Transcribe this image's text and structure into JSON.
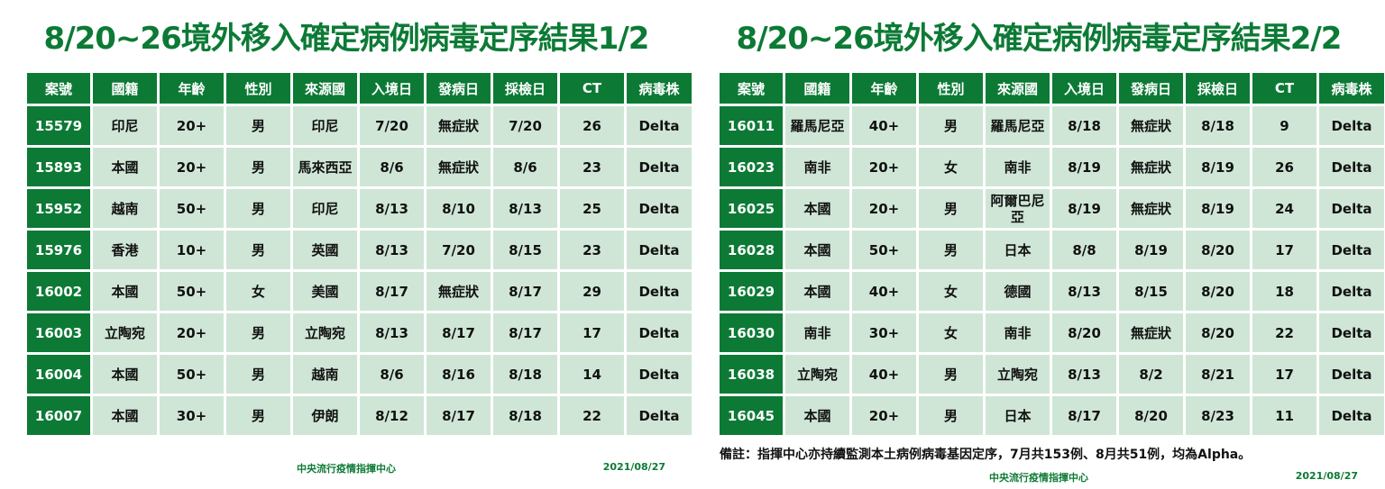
{
  "colors": {
    "brand_green": "#0c7a35",
    "cell_bg": "#cfe6d6"
  },
  "headers": [
    "案號",
    "國籍",
    "年齡",
    "性別",
    "來源國",
    "入境日",
    "發病日",
    "採檢日",
    "CT",
    "病毒株"
  ],
  "left": {
    "title": "8/20~26境外移入確定病例病毒定序結果1/2",
    "rows": [
      [
        "15579",
        "印尼",
        "20+",
        "男",
        "印尼",
        "7/20",
        "無症狀",
        "7/20",
        "26",
        "Delta"
      ],
      [
        "15893",
        "本國",
        "20+",
        "男",
        "馬來西亞",
        "8/6",
        "無症狀",
        "8/6",
        "23",
        "Delta"
      ],
      [
        "15952",
        "越南",
        "50+",
        "男",
        "印尼",
        "8/13",
        "8/10",
        "8/13",
        "25",
        "Delta"
      ],
      [
        "15976",
        "香港",
        "10+",
        "男",
        "英國",
        "8/13",
        "7/20",
        "8/15",
        "23",
        "Delta"
      ],
      [
        "16002",
        "本國",
        "50+",
        "女",
        "美國",
        "8/17",
        "無症狀",
        "8/17",
        "29",
        "Delta"
      ],
      [
        "16003",
        "立陶宛",
        "20+",
        "男",
        "立陶宛",
        "8/13",
        "8/17",
        "8/17",
        "17",
        "Delta"
      ],
      [
        "16004",
        "本國",
        "50+",
        "男",
        "越南",
        "8/6",
        "8/16",
        "8/18",
        "14",
        "Delta"
      ],
      [
        "16007",
        "本國",
        "30+",
        "男",
        "伊朗",
        "8/12",
        "8/17",
        "8/18",
        "22",
        "Delta"
      ]
    ],
    "footer_org": "中央流行疫情指揮中心",
    "footer_date": "2021/08/27"
  },
  "right": {
    "title": "8/20~26境外移入確定病例病毒定序結果2/2",
    "rows": [
      [
        "16011",
        "羅馬尼亞",
        "40+",
        "男",
        "羅馬尼亞",
        "8/18",
        "無症狀",
        "8/18",
        "9",
        "Delta"
      ],
      [
        "16023",
        "南非",
        "20+",
        "女",
        "南非",
        "8/19",
        "無症狀",
        "8/19",
        "26",
        "Delta"
      ],
      [
        "16025",
        "本國",
        "20+",
        "男",
        "阿爾巴尼亞",
        "8/19",
        "無症狀",
        "8/19",
        "24",
        "Delta"
      ],
      [
        "16028",
        "本國",
        "50+",
        "男",
        "日本",
        "8/8",
        "8/19",
        "8/20",
        "17",
        "Delta"
      ],
      [
        "16029",
        "本國",
        "40+",
        "女",
        "德國",
        "8/13",
        "8/15",
        "8/20",
        "18",
        "Delta"
      ],
      [
        "16030",
        "南非",
        "30+",
        "女",
        "南非",
        "8/20",
        "無症狀",
        "8/20",
        "22",
        "Delta"
      ],
      [
        "16038",
        "立陶宛",
        "40+",
        "男",
        "立陶宛",
        "8/13",
        "8/2",
        "8/21",
        "17",
        "Delta"
      ],
      [
        "16045",
        "本國",
        "20+",
        "男",
        "日本",
        "8/17",
        "8/20",
        "8/23",
        "11",
        "Delta"
      ]
    ],
    "note": "備註：指揮中心亦持續監測本土病例病毒基因定序，7月共153例、8月共51例，均為Alpha。",
    "footer_org": "中央流行疫情指揮中心",
    "footer_date": "2021/08/27"
  }
}
